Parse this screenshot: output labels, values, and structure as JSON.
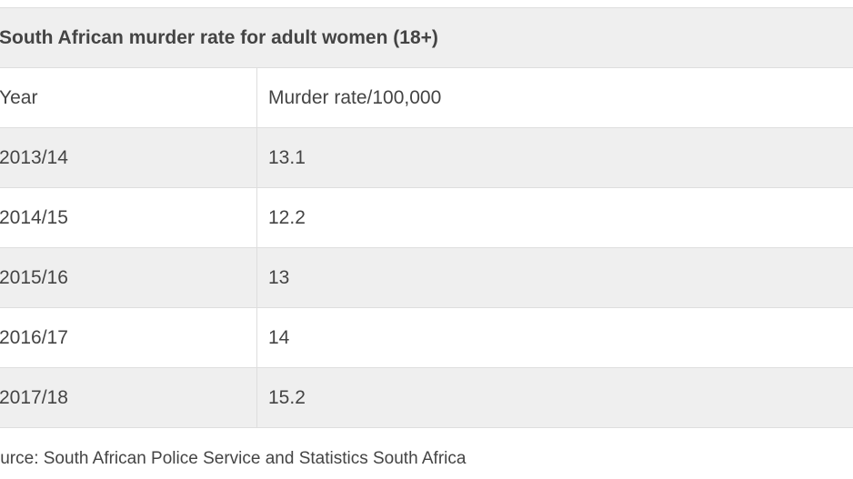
{
  "table": {
    "title": "South African murder rate for adult women (18+)",
    "columns": [
      "Year",
      "Murder rate/100,000"
    ],
    "rows": [
      [
        "2013/14",
        "13.1"
      ],
      [
        "2014/15",
        "12.2"
      ],
      [
        "2015/16",
        "13"
      ],
      [
        "2016/17",
        "14"
      ],
      [
        "2017/18",
        "15.2"
      ]
    ]
  },
  "source": "Source: South African Police Service and Statistics South Africa"
}
